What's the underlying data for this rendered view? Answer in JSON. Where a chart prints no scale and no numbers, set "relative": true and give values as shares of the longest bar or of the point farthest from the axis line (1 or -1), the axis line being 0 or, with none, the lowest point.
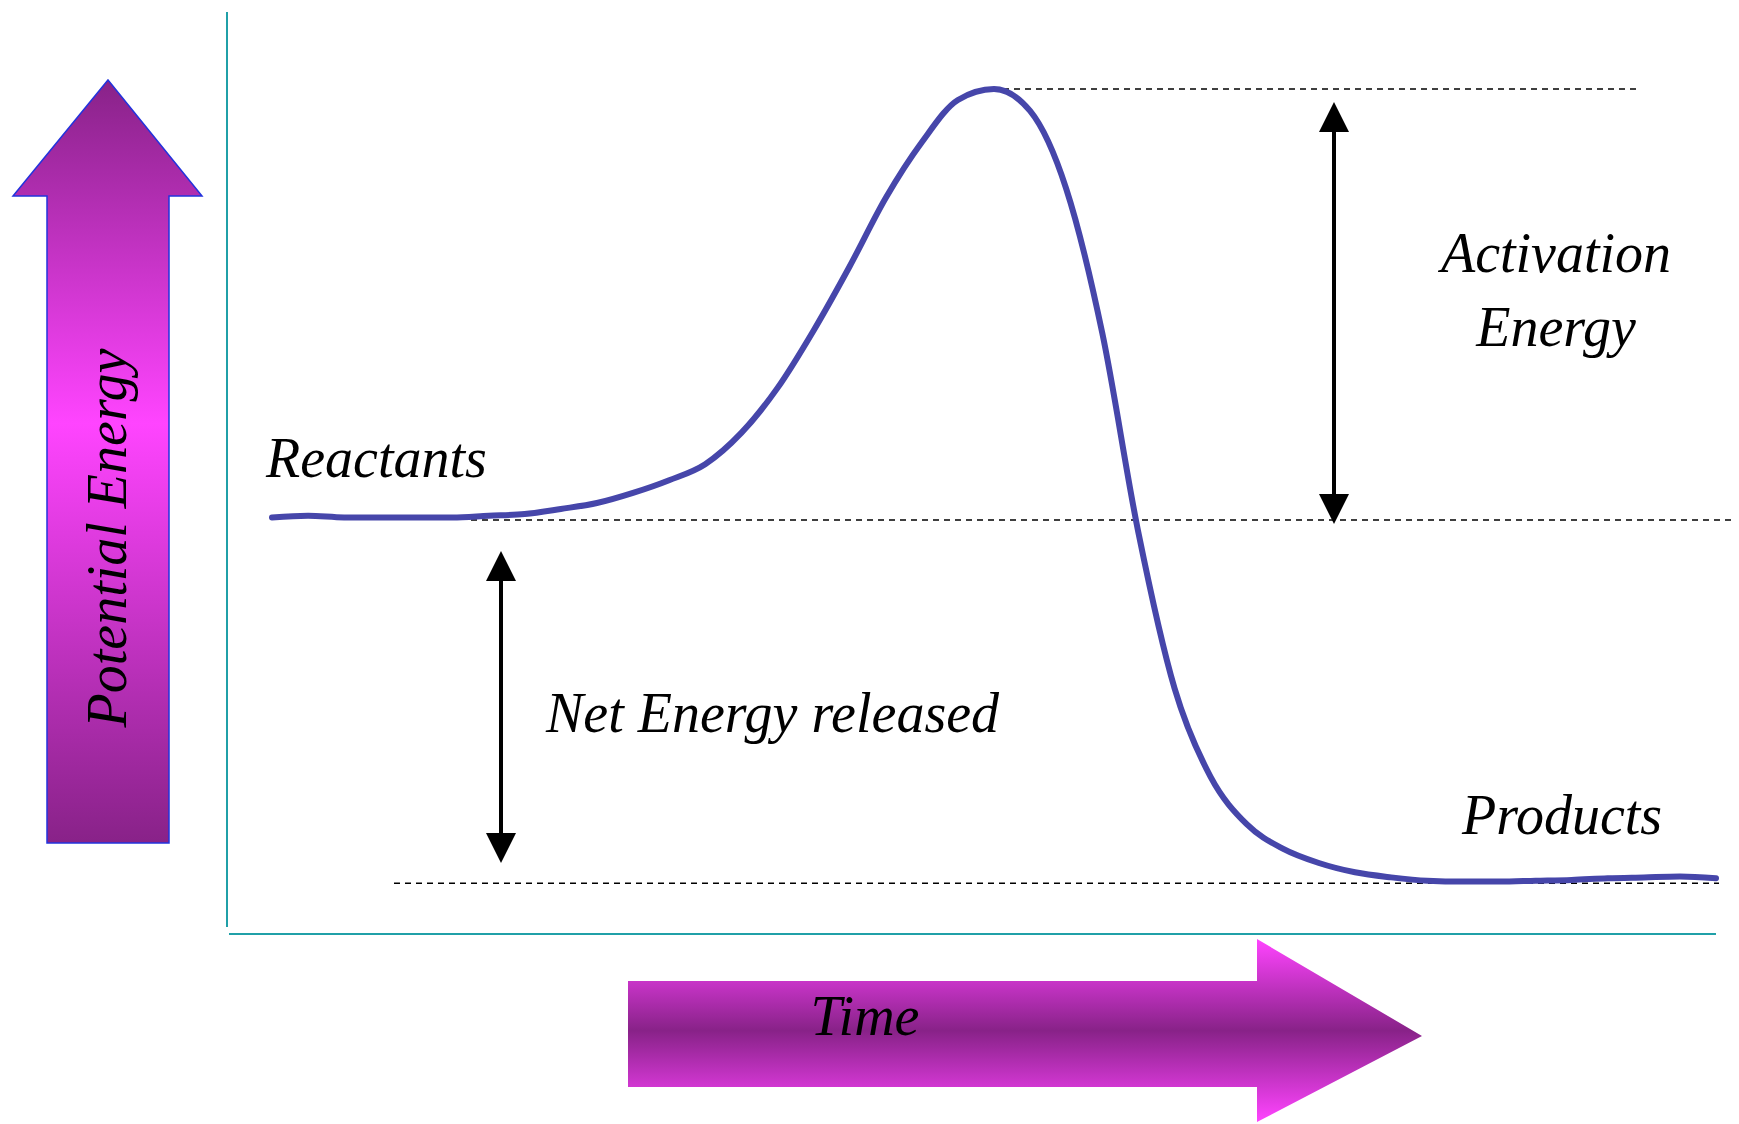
{
  "chart_data": {
    "type": "line",
    "relative": true,
    "xlabel": "Time",
    "ylabel": "Potential Energy",
    "categories": [
      null,
      null,
      null,
      null,
      null,
      null,
      null,
      null,
      null,
      null,
      null,
      null,
      null,
      null,
      null,
      null,
      null,
      null,
      null,
      null,
      null,
      null,
      null,
      null,
      null,
      null,
      null,
      null,
      null,
      null,
      null,
      null,
      null,
      null,
      null,
      null,
      null,
      null,
      null,
      null,
      null
    ],
    "series": [
      {
        "color": "#4646aa",
        "values": [
          0.493,
          0.495,
          0.493,
          0.493,
          0.493,
          0.493,
          0.495,
          0.497,
          0.503,
          0.51,
          0.522,
          0.537,
          0.556,
          0.593,
          0.646,
          0.714,
          0.79,
          0.871,
          0.937,
          0.987,
          1.0,
          0.974,
          0.882,
          0.711,
          0.475,
          0.291,
          0.186,
          0.13,
          0.101,
          0.084,
          0.073,
          0.067,
          0.063,
          0.062,
          0.062,
          0.063,
          0.064,
          0.066,
          0.067,
          0.068,
          0.066
        ]
      }
    ],
    "ref_lines": [
      {
        "axis": "y",
        "value": 1.0,
        "color": "#000000",
        "line_style": "dashed"
      },
      {
        "axis": "y",
        "value": 0.49,
        "color": "#000000",
        "line_style": "dashed"
      },
      {
        "axis": "y",
        "value": 0.06,
        "color": "#000000",
        "line_style": "dashed"
      }
    ],
    "annotations": [
      "Reactants",
      "Activation Energy",
      "Net Energy released",
      "Products"
    ]
  }
}
